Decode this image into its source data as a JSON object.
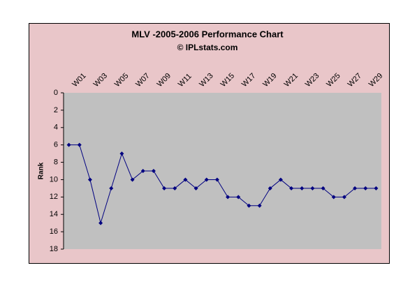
{
  "chart_data": {
    "type": "line",
    "title": "MLV -2005-2006 Performance Chart",
    "subtitle": "© IPLstats.com",
    "y_label": "Rank",
    "categories": [
      "W01",
      null,
      "W03",
      null,
      "W05",
      null,
      "W07",
      null,
      "W09",
      null,
      "W11",
      null,
      "W13",
      null,
      "W15",
      null,
      "W17",
      null,
      "W19",
      null,
      "W21",
      null,
      "W23",
      null,
      "W25",
      null,
      "W27",
      null,
      "W29",
      null
    ],
    "series": [
      {
        "name": "Rank",
        "color": "#000080",
        "values": [
          6,
          6,
          10,
          15,
          11,
          7,
          10,
          9,
          9,
          11,
          11,
          10,
          11,
          10,
          10,
          12,
          12,
          13,
          13,
          11,
          10,
          11,
          11,
          11,
          11,
          12,
          12,
          11,
          11,
          11
        ]
      }
    ],
    "ylim": [
      18,
      0
    ],
    "yticks": [
      0,
      2,
      4,
      6,
      8,
      10,
      12,
      14,
      16,
      18
    ],
    "grid": false
  }
}
